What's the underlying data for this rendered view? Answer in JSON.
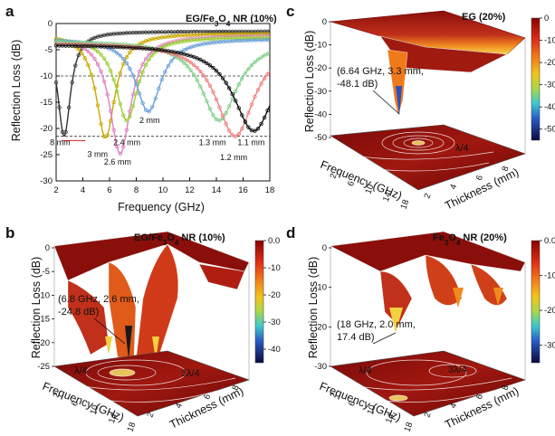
{
  "chart_data": [
    {
      "panel": "a",
      "type": "line",
      "title": "EG/Fe3O4 NR (10%)",
      "xlabel": "Frequency (GHz)",
      "ylabel": "Reflection Loss (dB)",
      "xlim": [
        2,
        18
      ],
      "ylim": [
        -30,
        0
      ],
      "x_ticks": [
        "2",
        "4",
        "6",
        "8",
        "10",
        "12",
        "14",
        "16",
        "18"
      ],
      "y_ticks": [
        "0",
        "-5",
        "-10",
        "-15",
        "-20",
        "-25",
        "-30"
      ],
      "reference_lines_db": [
        -10,
        -21.5
      ],
      "series": [
        {
          "name": "8 mm",
          "color": "#333333",
          "dip_freq": 2.6,
          "dip_db": -21.5
        },
        {
          "name": "3 mm",
          "color": "#c8a800",
          "dip_freq": 5.7,
          "dip_db": -21.8
        },
        {
          "name": "2.6 mm",
          "color": "#e080c0",
          "dip_freq": 6.8,
          "dip_db": -24.8
        },
        {
          "name": "2.4 mm",
          "color": "#9acd32",
          "dip_freq": 7.3,
          "dip_db": -18.5
        },
        {
          "name": "2 mm",
          "color": "#6aa0d8",
          "dip_freq": 8.9,
          "dip_db": -16.8
        },
        {
          "name": "1.3 mm",
          "color": "#7fd08a",
          "dip_freq": 14.2,
          "dip_db": -18.5
        },
        {
          "name": "1.2 mm",
          "color": "#f08080",
          "dip_freq": 15.4,
          "dip_db": -21.5
        },
        {
          "name": "1.1 mm",
          "color": "#111111",
          "dip_freq": 16.8,
          "dip_db": -20.5
        }
      ],
      "curve_labels": [
        {
          "text": "8 mm",
          "f": 2.3,
          "db": -23.2
        },
        {
          "text": "3 mm",
          "f": 5.1,
          "db": -25.4
        },
        {
          "text": "2.6 mm",
          "f": 6.6,
          "db": -26.9
        },
        {
          "text": "2.4 mm",
          "f": 7.3,
          "db": -23.2
        },
        {
          "text": "2 mm",
          "f": 9.0,
          "db": -19.0
        },
        {
          "text": "1.3 mm",
          "f": 13.7,
          "db": -23.2
        },
        {
          "text": "1.2 mm",
          "f": 15.3,
          "db": -26.0
        },
        {
          "text": "1.1 mm",
          "f": 16.6,
          "db": -23.2
        }
      ]
    },
    {
      "panel": "b",
      "type": "surface3d",
      "title": "EG/Fe3O4 NR (10%)",
      "xlabel": "Frequency (GHz)",
      "ylabel": "Thickness (mm)",
      "zlabel": "Reflection Loss (dB)",
      "z_ticks": [
        "0",
        "-5",
        "-10",
        "-15",
        "-20",
        "-25"
      ],
      "x_ticks": [
        "2",
        "6",
        "10",
        "14",
        "18"
      ],
      "y_ticks": [
        "2",
        "4",
        "6",
        "8"
      ],
      "annotation": [
        "(6.8 GHz, 2.6 mm,",
        "-24.8 dB)"
      ],
      "quarter_labels": [
        "λ/4",
        "3λ/4"
      ],
      "colorbar": {
        "ticks": [
          "0.0",
          "-10",
          "-20",
          "-30",
          "-40"
        ],
        "range": [
          -45,
          0
        ]
      }
    },
    {
      "panel": "c",
      "type": "surface3d",
      "title": "EG (20%)",
      "xlabel": "Frequency (GHz)",
      "ylabel": "Thickness (mm)",
      "zlabel": "Reflection Loss (dB)",
      "z_ticks": [
        "0",
        "-10",
        "-20",
        "-30",
        "-40",
        "-50"
      ],
      "x_ticks": [
        "2",
        "6",
        "10",
        "14",
        "18"
      ],
      "y_ticks": [
        "2",
        "4",
        "6",
        "8"
      ],
      "annotation": [
        "(6.64 GHz, 3.3 mm,",
        "-48.1 dB)"
      ],
      "quarter_labels": [
        "λ/4"
      ],
      "colorbar": {
        "ticks": [
          "0",
          "-10",
          "-20",
          "-30",
          "-40",
          "-50"
        ],
        "range": [
          -55,
          0
        ]
      }
    },
    {
      "panel": "d",
      "type": "surface3d",
      "title": "Fe3O4 NR (20%)",
      "xlabel": "Frequency (GHz)",
      "ylabel": "Thickness (mm)",
      "zlabel": "Reflection Loss (dB)",
      "z_ticks": [
        "0",
        "-10",
        "-20",
        "-30"
      ],
      "x_ticks": [
        "2",
        "6",
        "10",
        "14",
        "18"
      ],
      "y_ticks": [
        "2",
        "4",
        "6",
        "8"
      ],
      "annotation": [
        "(18 GHz, 2.0 mm,",
        "17.4 dB)"
      ],
      "quarter_labels": [
        "λ/4",
        "3λ/4"
      ],
      "colorbar": {
        "ticks": [
          "0.0",
          "-10",
          "-20",
          "-30"
        ],
        "range": [
          -35,
          0
        ]
      }
    }
  ],
  "labels": {
    "a": "a",
    "b": "b",
    "c": "c",
    "d": "d"
  }
}
